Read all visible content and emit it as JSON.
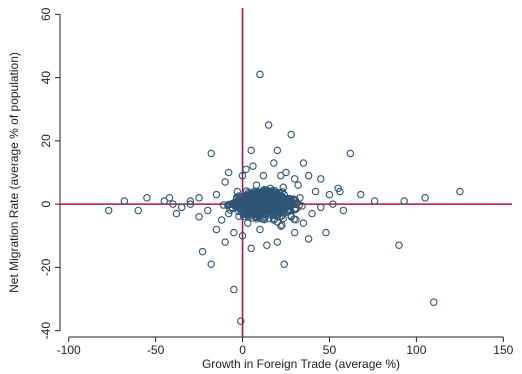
{
  "chart_data": {
    "type": "scatter",
    "title": "",
    "xlabel": "Growth in Foreign Trade (average %)",
    "ylabel": "Net Migration Rate (average % of population)",
    "xlim": [
      -105,
      155
    ],
    "ylim": [
      -42,
      62
    ],
    "x_ticks": [
      -100,
      -50,
      0,
      50,
      100,
      150
    ],
    "y_ticks": [
      -40,
      -20,
      0,
      20,
      40,
      60
    ],
    "x_tick_labels": [
      "-100",
      "-50",
      "0",
      "50",
      "100",
      "150"
    ],
    "y_tick_labels": [
      "-40",
      "-20",
      "0",
      "20",
      "40",
      "60"
    ],
    "reference_lines": {
      "x": 0,
      "y": 0,
      "color": "#b0124a"
    },
    "marker": {
      "shape": "hollow-circle",
      "color": "#2f5575"
    },
    "grid": false,
    "legend": "none",
    "points": [
      [
        10,
        41
      ],
      [
        15,
        25
      ],
      [
        28,
        22
      ],
      [
        5,
        17
      ],
      [
        20,
        17
      ],
      [
        62,
        16
      ],
      [
        -18,
        16
      ],
      [
        18,
        13
      ],
      [
        35,
        13
      ],
      [
        6,
        12
      ],
      [
        2,
        11
      ],
      [
        25,
        10
      ],
      [
        38,
        9
      ],
      [
        45,
        8
      ],
      [
        30,
        8
      ],
      [
        -10,
        7
      ],
      [
        12,
        9
      ],
      [
        22,
        9
      ],
      [
        -8,
        10
      ],
      [
        0,
        9
      ],
      [
        55,
        5
      ],
      [
        56,
        4
      ],
      [
        50,
        3
      ],
      [
        42,
        4
      ],
      [
        32,
        6
      ],
      [
        -15,
        3
      ],
      [
        -25,
        2
      ],
      [
        -45,
        1
      ],
      [
        -55,
        2
      ],
      [
        -68,
        1
      ],
      [
        -77,
        -2
      ],
      [
        -60,
        -2
      ],
      [
        -40,
        0
      ],
      [
        -35,
        -1
      ],
      [
        -30,
        0
      ],
      [
        -20,
        -2
      ],
      [
        68,
        3
      ],
      [
        76,
        1
      ],
      [
        93,
        1
      ],
      [
        105,
        2
      ],
      [
        125,
        4
      ],
      [
        110,
        -31
      ],
      [
        90,
        -13
      ],
      [
        48,
        -9
      ],
      [
        38,
        -11
      ],
      [
        30,
        -9
      ],
      [
        20,
        -12
      ],
      [
        14,
        -13
      ],
      [
        5,
        -14
      ],
      [
        -5,
        -9
      ],
      [
        -15,
        -8
      ],
      [
        -18,
        -19
      ],
      [
        -23,
        -15
      ],
      [
        -5,
        -27
      ],
      [
        24,
        -19
      ],
      [
        -1,
        -37
      ],
      [
        -10,
        -12
      ],
      [
        0,
        -10
      ],
      [
        10,
        -8
      ],
      [
        22,
        -7
      ],
      [
        35,
        -6
      ],
      [
        40,
        -3
      ],
      [
        45,
        -1
      ],
      [
        52,
        0
      ],
      [
        58,
        -2
      ],
      [
        -12,
        -5
      ],
      [
        -25,
        -4
      ],
      [
        -30,
        1
      ],
      [
        -38,
        -3
      ],
      [
        -42,
        2
      ],
      [
        -8,
        -3
      ],
      [
        3,
        -6
      ],
      [
        8,
        6
      ],
      [
        16,
        5
      ],
      [
        24,
        3
      ],
      [
        28,
        -4
      ],
      [
        33,
        2
      ],
      [
        -3,
        4
      ],
      [
        -6,
        -1
      ],
      [
        12,
        -3
      ],
      [
        18,
        -5
      ]
    ]
  }
}
